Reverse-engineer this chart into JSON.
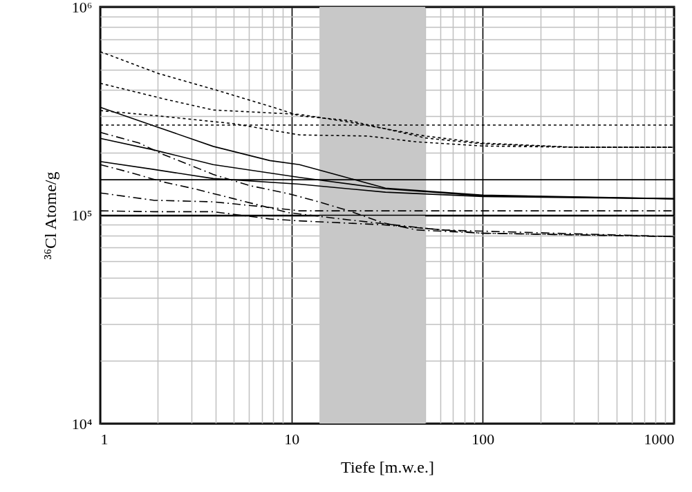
{
  "chart_data": {
    "type": "line",
    "xlabel": "Tiefe [m.w.e.]",
    "ylabel": "³⁶Cl Atome/g",
    "log": "xy",
    "grid": true,
    "marker": "none",
    "xlim": [
      1,
      1000
    ],
    "xticks": [
      1,
      10,
      100,
      1000
    ],
    "ylim": [
      10000,
      1000000
    ],
    "yticks": [
      {
        "value": 10000,
        "label": "10⁴"
      },
      {
        "value": 100000,
        "label": "10⁵"
      },
      {
        "value": 1000000,
        "label": "10⁶"
      }
    ],
    "bands": [
      {
        "axis": "x",
        "from": 14,
        "to": 50,
        "color": "#c8c8c8"
      }
    ],
    "series": [
      {
        "color": "#000000",
        "line_style": "dotted",
        "x": [
          1,
          2,
          4,
          8,
          11,
          20,
          50,
          100,
          300,
          1000
        ],
        "values": [
          610000,
          480000,
          400000,
          330000,
          300000,
          285000,
          235000,
          220000,
          212000,
          212000
        ]
      },
      {
        "color": "#000000",
        "line_style": "dotted",
        "x": [
          1,
          2.2,
          3.9,
          11,
          20,
          50,
          100,
          300,
          1000
        ],
        "values": [
          430000,
          360000,
          320000,
          305000,
          280000,
          240000,
          222000,
          212000,
          212000
        ]
      },
      {
        "color": "#000000",
        "line_style": "dotted",
        "x": [
          1,
          2,
          5,
          11,
          25,
          45,
          100,
          300,
          1000
        ],
        "values": [
          318000,
          300000,
          275000,
          243000,
          240000,
          225000,
          215000,
          212000,
          212000
        ]
      },
      {
        "color": "#000000",
        "line_style": "dotted",
        "x": [
          1,
          1000
        ],
        "values": [
          271000,
          271000
        ]
      },
      {
        "color": "#000000",
        "line_style": "solid",
        "x": [
          1,
          1.9,
          3.9,
          7.7,
          11,
          31,
          100,
          1000
        ],
        "values": [
          330000,
          269000,
          214000,
          183000,
          175000,
          135000,
          125000,
          120000
        ]
      },
      {
        "color": "#000000",
        "line_style": "solid",
        "x": [
          1,
          1.9,
          3.9,
          11,
          31,
          100,
          1000
        ],
        "values": [
          234000,
          206000,
          175000,
          152000,
          134000,
          124000,
          120000
        ]
      },
      {
        "color": "#000000",
        "line_style": "solid",
        "x": [
          1,
          1.9,
          3.9,
          11,
          31,
          100,
          1000
        ],
        "values": [
          181000,
          166000,
          150000,
          141000,
          129000,
          123000,
          120000
        ]
      },
      {
        "color": "#000000",
        "line_style": "solid",
        "x": [
          1,
          1000
        ],
        "values": [
          148000,
          148000
        ]
      },
      {
        "color": "#000000",
        "line_style": "solid",
        "x": [
          1,
          1000
        ],
        "values": [
          100000,
          100000
        ]
      },
      {
        "color": "#000000",
        "line_style": "dashed",
        "x": [
          1,
          1.6,
          2.1,
          3,
          3.9,
          6,
          9.6,
          13,
          20,
          30,
          45,
          100,
          1000
        ],
        "values": [
          250000,
          222000,
          197000,
          173000,
          157000,
          139000,
          127000,
          118000,
          105000,
          92000,
          85000,
          82000,
          79000
        ]
      },
      {
        "color": "#000000",
        "line_style": "dashed",
        "x": [
          1,
          1.45,
          2.1,
          3.1,
          5,
          9.6,
          20,
          60,
          1000
        ],
        "values": [
          175000,
          160000,
          145000,
          134000,
          120000,
          103000,
          95000,
          85000,
          79000
        ]
      },
      {
        "color": "#000000",
        "line_style": "dashed",
        "x": [
          1,
          1.9,
          3.9,
          7.7,
          11,
          100,
          1000
        ],
        "values": [
          128000,
          118000,
          116000,
          109000,
          105000,
          105000,
          105000
        ]
      },
      {
        "color": "#000000",
        "line_style": "dashed",
        "x": [
          1,
          1.9,
          3.9,
          7.7,
          11,
          30,
          100,
          1000
        ],
        "values": [
          105000,
          104000,
          104000,
          96000,
          94000,
          90000,
          82000,
          79000
        ]
      }
    ]
  }
}
